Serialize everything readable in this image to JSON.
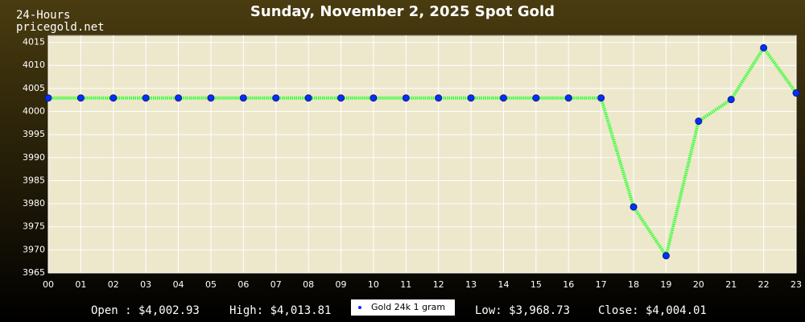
{
  "chart_data": {
    "type": "line",
    "title": "Sunday, November 2, 2025 Spot Gold",
    "period": "24-Hours",
    "source": "pricegold.net",
    "categories": [
      "00",
      "01",
      "02",
      "03",
      "04",
      "05",
      "06",
      "07",
      "08",
      "09",
      "10",
      "11",
      "12",
      "13",
      "14",
      "15",
      "16",
      "17",
      "18",
      "19",
      "20",
      "21",
      "22",
      "23"
    ],
    "series": [
      {
        "name": "Gold 24k 1 gram",
        "color": "#33ff33",
        "marker_color": "#0a2cff",
        "values": [
          4002.93,
          4002.93,
          4002.93,
          4002.93,
          4002.93,
          4002.93,
          4002.93,
          4002.93,
          4002.93,
          4002.93,
          4002.93,
          4002.93,
          4002.93,
          4002.93,
          4002.93,
          4002.93,
          4002.93,
          4002.93,
          3979.3,
          3968.73,
          3997.9,
          4002.6,
          4013.81,
          4004.01
        ]
      }
    ],
    "ylim": [
      3965,
      4016.5
    ],
    "yticks": [
      3965,
      3970,
      3975,
      3980,
      3985,
      3990,
      3995,
      4000,
      4005,
      4010,
      4015
    ],
    "grid": true,
    "stats": {
      "open": "Open : $4,002.93",
      "high": "High: $4,013.81",
      "low": "Low: $3,968.73",
      "close": "Close: $4,004.01"
    }
  }
}
